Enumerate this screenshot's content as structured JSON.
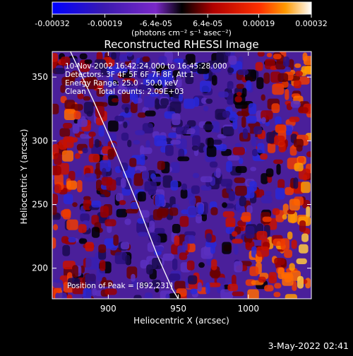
{
  "chart_data": {
    "type": "heatmap",
    "title": "Reconstructed RHESSI Image",
    "xlabel": "Heliocentric X (arcsec)",
    "ylabel": "Heliocentric Y (arcsec)",
    "xlim": [
      860,
      1045
    ],
    "ylim": [
      176,
      370
    ],
    "x_ticks": [
      900,
      950,
      1000
    ],
    "y_ticks": [
      200,
      250,
      300,
      350
    ],
    "colorbar": {
      "range": [
        -0.00032,
        0.00032
      ],
      "tick_values": [
        -0.00032,
        -0.00019,
        -6.4e-05,
        6.4e-05,
        0.00019,
        0.00032
      ],
      "tick_labels": [
        "-0.00032",
        "-0.00019",
        "-6.4e-05",
        "6.4e-05",
        "0.00019",
        "0.00032"
      ],
      "label": "(photons cm⁻² s⁻¹ asec⁻²)",
      "colors": [
        "#0000ff",
        "#3a1ab0",
        "#7a28c8",
        "#000000",
        "#b00000",
        "#ff3000",
        "#ff9a00",
        "#ffffff"
      ]
    },
    "annotations": [
      "10-Nov-2002 16:42:24.000 to 16:45:28.000",
      "Detectors: 3F 4F 5F 6F 7F 8F, Att 1",
      "Energy Range: 25.0 - 50.0 keV",
      "Clean     Total counts: 2.09E+03"
    ],
    "peak_label": "Position of Peak = [892,231]",
    "limb_points": [
      [
        873,
        370
      ],
      [
        890,
        330
      ],
      [
        906,
        290
      ],
      [
        921,
        250
      ],
      [
        935,
        210
      ],
      [
        946,
        183
      ],
      [
        950,
        176
      ]
    ]
  },
  "footer": {
    "timestamp": "3-May-2022 02:41"
  }
}
